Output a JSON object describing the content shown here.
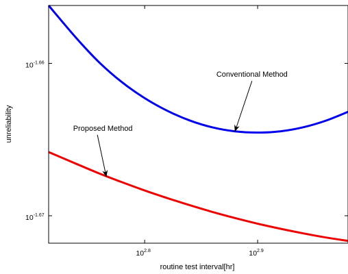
{
  "chart_data": {
    "type": "line",
    "xlabel": "routine test interval[hr]",
    "ylabel": "unreliability",
    "x_scale": "log",
    "y_scale": "log",
    "xlim_log10": [
      2.715,
      2.98
    ],
    "ylim_log10": [
      -1.6718,
      -1.6562
    ],
    "x_ticks": [
      {
        "base": "10",
        "exp": "2.8",
        "value_log10": 2.8
      },
      {
        "base": "10",
        "exp": "2.9",
        "value_log10": 2.9
      }
    ],
    "y_ticks": [
      {
        "base": "10",
        "exp": "-1.66",
        "value_log10": -1.66
      },
      {
        "base": "10",
        "exp": "-1.67",
        "value_log10": -1.67
      }
    ],
    "grid": false,
    "series": [
      {
        "name": "Conventional Method",
        "color": "#0000ee",
        "x_log10": [
          2.715,
          2.74,
          2.76,
          2.78,
          2.8,
          2.82,
          2.84,
          2.86,
          2.88,
          2.9,
          2.92,
          2.94,
          2.96,
          2.98
        ],
        "y_log10": [
          -1.6562,
          -1.65838,
          -1.65995,
          -1.66124,
          -1.66228,
          -1.66311,
          -1.66375,
          -1.6642,
          -1.66446,
          -1.66454,
          -1.66446,
          -1.6642,
          -1.66377,
          -1.66318
        ]
      },
      {
        "name": "Proposed Method",
        "color": "#ee0000",
        "x_log10": [
          2.715,
          2.74,
          2.76,
          2.78,
          2.8,
          2.82,
          2.84,
          2.86,
          2.88,
          2.9,
          2.92,
          2.94,
          2.96,
          2.98
        ],
        "y_log10": [
          -1.66582,
          -1.66661,
          -1.66723,
          -1.6678,
          -1.66834,
          -1.66884,
          -1.66931,
          -1.66975,
          -1.67015,
          -1.67052,
          -1.67085,
          -1.67115,
          -1.67142,
          -1.67165
        ]
      }
    ],
    "annotations": [
      {
        "text": "Conventional Method",
        "points_to_series": 0,
        "text_x_log10": 2.895,
        "text_y_log10": -1.66088,
        "arrow_x_log10": 2.88,
        "arrow_y_log10": -1.66445
      },
      {
        "text": "Proposed Method",
        "points_to_series": 1,
        "text_x_log10": 2.763,
        "text_y_log10": -1.66442,
        "arrow_x_log10": 2.766,
        "arrow_y_log10": -1.66742
      }
    ]
  }
}
